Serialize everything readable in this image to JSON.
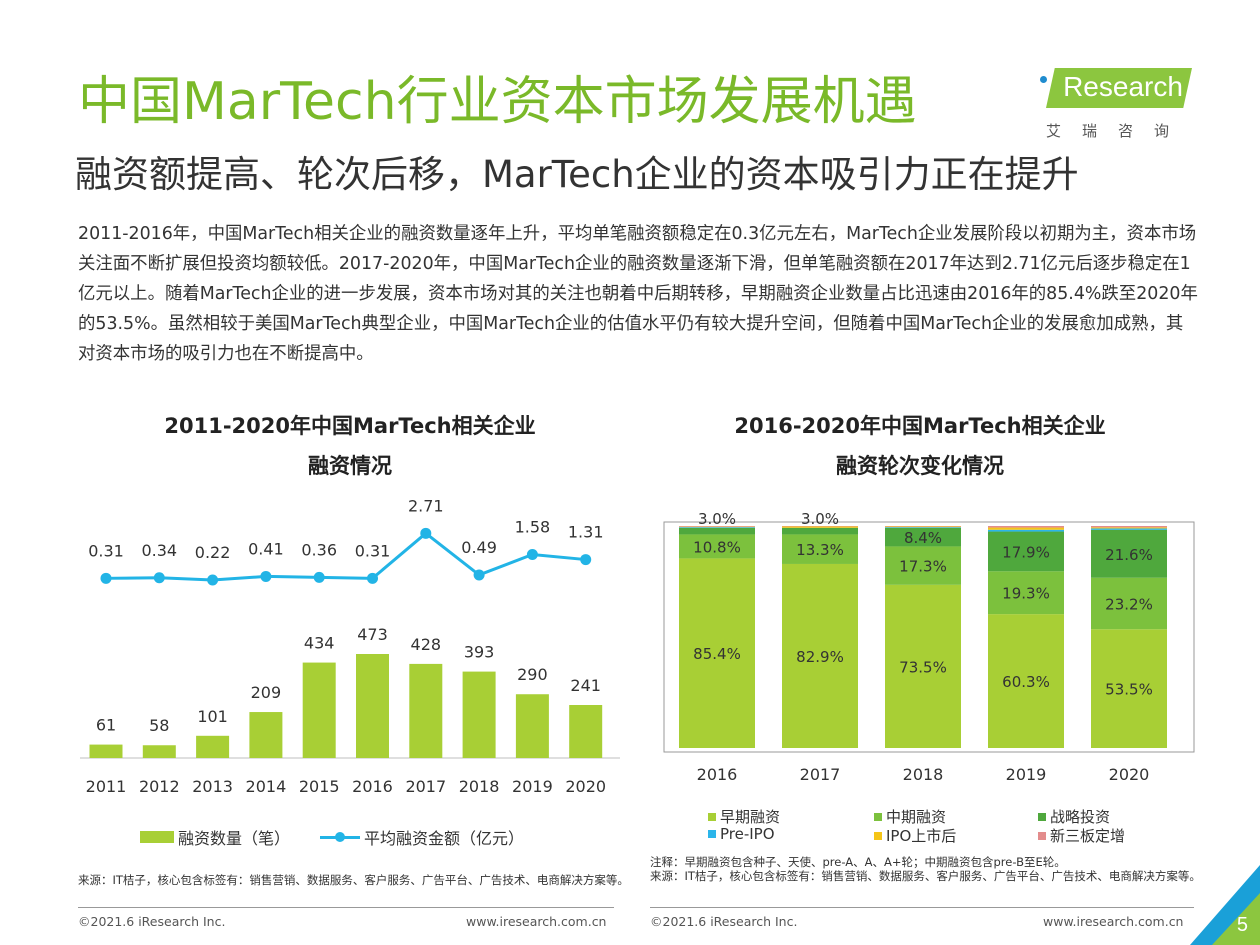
{
  "header": {
    "title": "中国MarTech行业资本市场发展机遇",
    "subtitle": "融资额提高、轮次后移，MarTech企业的资本吸引力正在提升",
    "logo_text": "Research",
    "logo_cn": "艾瑞咨询"
  },
  "intro": "2011-2016年，中国MarTech相关企业的融资数量逐年上升，平均单笔融资额稳定在0.3亿元左右，MarTech企业发展阶段以初期为主，资本市场关注面不断扩展但投资均额较低。2017-2020年，中国MarTech企业的融资数量逐渐下滑，但单笔融资额在2017年达到2.71亿元后逐步稳定在1亿元以上。随着MarTech企业的进一步发展，资本市场对其的关注也朝着中后期转移，早期融资企业数量占比迅速由2016年的85.4%跌至2020年的53.5%。虽然相较于美国MarTech典型企业，中国MarTech企业的估值水平仍有较大提升空间，但随着中国MarTech企业的发展愈加成熟，其对资本市场的吸引力也在不断提高中。",
  "chart1": {
    "title_line1": "2011-2020年中国MarTech相关企业",
    "title_line2": "融资情况",
    "legend_bar": "融资数量（笔）",
    "legend_line": "平均融资金额（亿元）",
    "source": "来源：IT桔子，核心包含标签有：销售营销、数据服务、客户服务、广告平台、广告技术、电商解决方案等。"
  },
  "chart2": {
    "title_line1": "2016-2020年中国MarTech相关企业",
    "title_line2": "融资轮次变化情况",
    "legend": [
      "早期融资",
      "中期融资",
      "战略投资",
      "Pre-IPO",
      "IPO上市后",
      "新三板定增"
    ],
    "note": "注释：早期融资包含种子、天使、pre-A、A、A+轮；中期融资包含pre-B至E轮。",
    "source": "来源：IT桔子，核心包含标签有：销售营销、数据服务、客户服务、广告平台、广告技术、电商解决方案等。"
  },
  "footer": {
    "copyright_left": "©2021.6 iResearch Inc.",
    "url_left": "www.iresearch.com.cn",
    "copyright_right": "©2021.6 iResearch Inc.",
    "url_right": "www.iresearch.com.cn",
    "page_number": "5"
  },
  "colors": {
    "title_green": "#7ab929",
    "bar_green": "#a8cf35",
    "line_blue": "#22b4e6",
    "early": "#a8cf35",
    "mid": "#7cc13d",
    "strategic": "#4fa83d",
    "preipo": "#2bb5ea",
    "postipo": "#f5c518",
    "neeq": "#e38c8c"
  },
  "chart_data": [
    {
      "type": "bar+line",
      "title": "2011-2020年中国MarTech相关企业融资情况",
      "categories": [
        "2011",
        "2012",
        "2013",
        "2014",
        "2015",
        "2016",
        "2017",
        "2018",
        "2019",
        "2020"
      ],
      "series": [
        {
          "name": "融资数量（笔）",
          "type": "bar",
          "values": [
            61,
            58,
            101,
            209,
            434,
            473,
            428,
            393,
            290,
            241
          ]
        },
        {
          "name": "平均融资金额（亿元）",
          "type": "line",
          "values": [
            0.31,
            0.34,
            0.22,
            0.41,
            0.36,
            0.31,
            2.71,
            0.49,
            1.58,
            1.31
          ]
        }
      ],
      "legend_position": "bottom",
      "grid": false
    },
    {
      "type": "stacked-bar-100",
      "title": "2016-2020年中国MarTech相关企业融资轮次变化情况",
      "categories": [
        "2016",
        "2017",
        "2018",
        "2019",
        "2020"
      ],
      "series": [
        {
          "name": "早期融资",
          "values": [
            85.4,
            82.9,
            73.5,
            60.3,
            53.5
          ],
          "labels": [
            "85.4%",
            "82.9%",
            "73.5%",
            "60.3%",
            "53.5%"
          ]
        },
        {
          "name": "中期融资",
          "values": [
            10.8,
            13.3,
            17.3,
            19.3,
            23.2
          ],
          "labels": [
            "10.8%",
            "13.3%",
            "17.3%",
            "19.3%",
            "23.2%"
          ]
        },
        {
          "name": "战略投资",
          "values": [
            3.0,
            3.0,
            8.4,
            17.9,
            21.6
          ],
          "labels": [
            "3.0%",
            "3.0%",
            "8.4%",
            "17.9%",
            "21.6%"
          ]
        },
        {
          "name": "Pre-IPO",
          "values": [
            0.3,
            0.0,
            0.3,
            0.8,
            0.6
          ],
          "labels": [
            "",
            "",
            "",
            "",
            ""
          ]
        },
        {
          "name": "IPO上市后",
          "values": [
            0.2,
            0.6,
            0.3,
            1.0,
            0.5
          ],
          "labels": [
            "",
            "",
            "",
            "",
            ""
          ]
        },
        {
          "name": "新三板定增",
          "values": [
            0.3,
            0.2,
            0.2,
            0.7,
            0.6
          ],
          "labels": [
            "",
            "",
            "",
            "",
            ""
          ]
        }
      ],
      "ylim": [
        0,
        100
      ],
      "legend_position": "bottom",
      "grid": false
    }
  ]
}
